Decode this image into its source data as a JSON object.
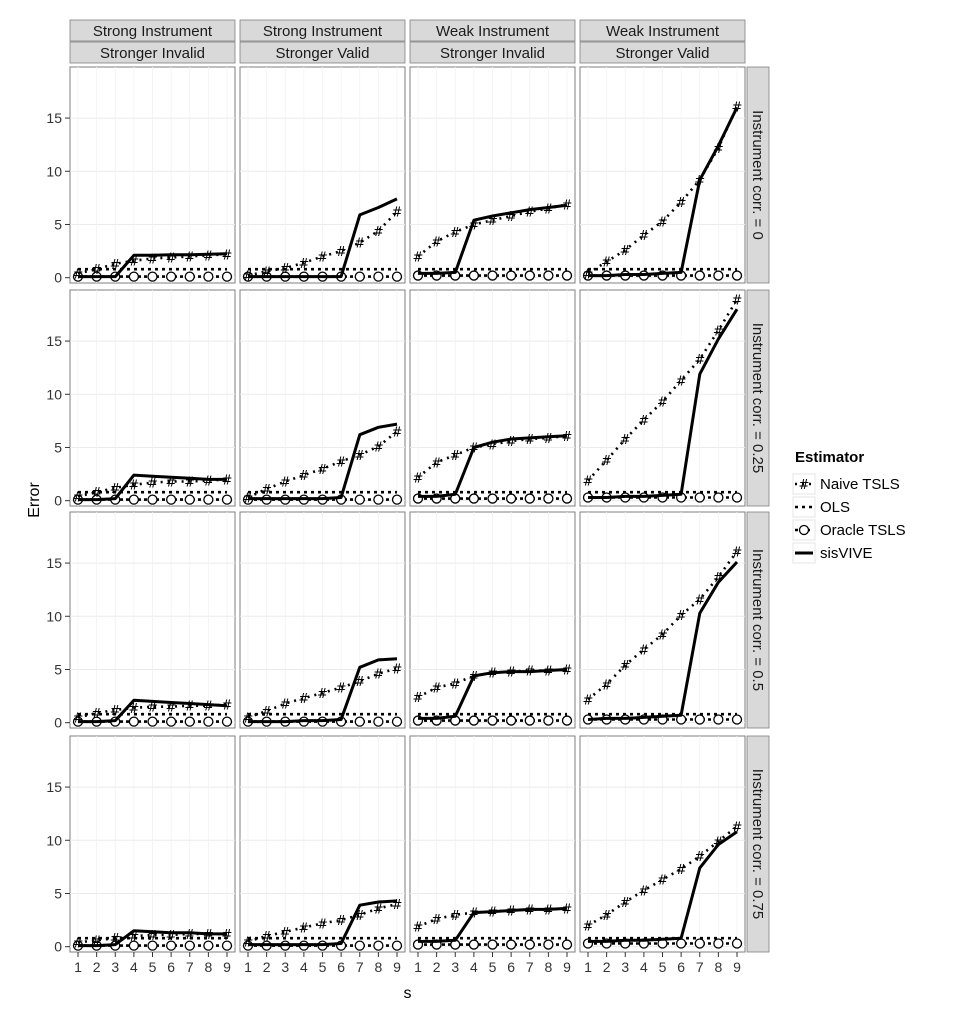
{
  "chart_data": {
    "type": "line",
    "ylabel": "Error",
    "xlabel": "s",
    "x": [
      1,
      2,
      3,
      4,
      5,
      6,
      7,
      8,
      9
    ],
    "ylim": [
      -0.5,
      19.8
    ],
    "yticks": [
      0,
      5,
      10,
      15
    ],
    "col_strips": [
      {
        "top": "Strong Instrument",
        "bottom": "Stronger Invalid"
      },
      {
        "top": "Strong Instrument",
        "bottom": "Stronger Valid"
      },
      {
        "top": "Weak Instrument",
        "bottom": "Stronger Invalid"
      },
      {
        "top": "Weak Instrument",
        "bottom": "Stronger Valid"
      }
    ],
    "row_strips": [
      "Instrument corr. = 0",
      "Instrument corr. = 0.25",
      "Instrument corr. = 0.5",
      "Instrument corr. = 0.75"
    ],
    "legend": {
      "title": "Estimator",
      "items": [
        "Naive TSLS",
        "OLS",
        "Oracle TSLS",
        "sisVIVE"
      ]
    },
    "panels": [
      [
        {
          "naive": [
            0.4,
            0.8,
            1.3,
            1.6,
            1.8,
            1.9,
            2.0,
            2.1,
            2.2
          ],
          "ols": [
            0.8,
            0.8,
            0.8,
            0.8,
            0.8,
            0.8,
            0.8,
            0.8,
            0.8
          ],
          "oracle": [
            0.1,
            0.1,
            0.1,
            0.1,
            0.1,
            0.1,
            0.1,
            0.1,
            0.1
          ],
          "sisvive": [
            0.1,
            0.1,
            0.1,
            2.1,
            2.1,
            2.15,
            2.15,
            2.2,
            2.25
          ]
        },
        {
          "naive": [
            0.2,
            0.6,
            0.9,
            1.4,
            2.0,
            2.5,
            3.3,
            4.4,
            6.2
          ],
          "ols": [
            0.8,
            0.8,
            0.8,
            0.8,
            0.8,
            0.8,
            0.8,
            0.8,
            0.8
          ],
          "oracle": [
            0.1,
            0.1,
            0.1,
            0.1,
            0.1,
            0.1,
            0.1,
            0.1,
            0.1
          ],
          "sisvive": [
            0.1,
            0.1,
            0.1,
            0.1,
            0.1,
            0.1,
            5.9,
            6.6,
            7.4
          ]
        },
        {
          "naive": [
            2.0,
            3.4,
            4.3,
            5.0,
            5.4,
            5.8,
            6.2,
            6.5,
            6.9
          ],
          "ols": [
            0.8,
            0.8,
            0.8,
            0.8,
            0.8,
            0.8,
            0.8,
            0.8,
            0.8
          ],
          "oracle": [
            0.2,
            0.2,
            0.2,
            0.2,
            0.2,
            0.2,
            0.2,
            0.2,
            0.2
          ],
          "sisvive": [
            0.4,
            0.4,
            0.5,
            5.4,
            5.8,
            6.1,
            6.4,
            6.6,
            6.8
          ]
        },
        {
          "naive": [
            0.4,
            1.5,
            2.6,
            4.0,
            5.3,
            7.1,
            9.2,
            12.2,
            16.1
          ],
          "ols": [
            0.8,
            0.8,
            0.8,
            0.8,
            0.8,
            0.8,
            0.8,
            0.8,
            0.8
          ],
          "oracle": [
            0.2,
            0.2,
            0.2,
            0.2,
            0.2,
            0.2,
            0.2,
            0.2,
            0.2
          ],
          "sisvive": [
            0.2,
            0.2,
            0.3,
            0.3,
            0.4,
            0.5,
            9.2,
            12.4,
            16.0
          ]
        }
      ],
      [
        {
          "naive": [
            0.4,
            0.8,
            1.2,
            1.5,
            1.7,
            1.8,
            1.8,
            1.9,
            2.0
          ],
          "ols": [
            0.8,
            0.8,
            0.8,
            0.8,
            0.8,
            0.8,
            0.8,
            0.8,
            0.8
          ],
          "oracle": [
            0.1,
            0.1,
            0.1,
            0.1,
            0.1,
            0.1,
            0.1,
            0.1,
            0.1
          ],
          "sisvive": [
            0.1,
            0.1,
            0.2,
            2.4,
            2.3,
            2.2,
            2.1,
            2.0,
            2.0
          ]
        },
        {
          "naive": [
            0.3,
            1.1,
            1.8,
            2.4,
            3.0,
            3.7,
            4.3,
            5.1,
            6.5
          ],
          "ols": [
            0.8,
            0.8,
            0.8,
            0.8,
            0.8,
            0.8,
            0.8,
            0.8,
            0.8
          ],
          "oracle": [
            0.1,
            0.1,
            0.1,
            0.1,
            0.1,
            0.1,
            0.1,
            0.1,
            0.1
          ],
          "sisvive": [
            0.2,
            0.2,
            0.2,
            0.2,
            0.2,
            0.3,
            6.2,
            6.9,
            7.2
          ]
        },
        {
          "naive": [
            2.2,
            3.6,
            4.3,
            5.0,
            5.3,
            5.6,
            5.8,
            5.9,
            6.1
          ],
          "ols": [
            0.8,
            0.8,
            0.8,
            0.8,
            0.8,
            0.8,
            0.8,
            0.8,
            0.8
          ],
          "oracle": [
            0.2,
            0.2,
            0.2,
            0.2,
            0.2,
            0.2,
            0.2,
            0.2,
            0.2
          ],
          "sisvive": [
            0.4,
            0.4,
            0.6,
            5.0,
            5.5,
            5.8,
            5.9,
            6.0,
            6.1
          ]
        },
        {
          "naive": [
            1.9,
            3.8,
            5.8,
            7.6,
            9.3,
            11.3,
            13.3,
            16.0,
            18.9
          ],
          "ols": [
            0.8,
            0.8,
            0.8,
            0.8,
            0.8,
            0.8,
            0.8,
            0.8,
            0.8
          ],
          "oracle": [
            0.3,
            0.3,
            0.3,
            0.3,
            0.3,
            0.3,
            0.3,
            0.3,
            0.3
          ],
          "sisvive": [
            0.3,
            0.3,
            0.4,
            0.4,
            0.5,
            0.6,
            11.9,
            15.2,
            18.0
          ]
        }
      ],
      [
        {
          "naive": [
            0.5,
            0.9,
            1.2,
            1.4,
            1.5,
            1.5,
            1.6,
            1.6,
            1.7
          ],
          "ols": [
            0.8,
            0.8,
            0.8,
            0.8,
            0.8,
            0.8,
            0.8,
            0.8,
            0.8
          ],
          "oracle": [
            0.1,
            0.1,
            0.1,
            0.1,
            0.1,
            0.1,
            0.1,
            0.1,
            0.1
          ],
          "sisvive": [
            0.1,
            0.1,
            0.2,
            2.1,
            2.0,
            1.9,
            1.8,
            1.7,
            1.6
          ]
        },
        {
          "naive": [
            0.5,
            1.1,
            1.8,
            2.3,
            2.8,
            3.3,
            3.9,
            4.6,
            5.1
          ],
          "ols": [
            0.8,
            0.8,
            0.8,
            0.8,
            0.8,
            0.8,
            0.8,
            0.8,
            0.8
          ],
          "oracle": [
            0.1,
            0.1,
            0.1,
            0.1,
            0.1,
            0.1,
            0.1,
            0.1,
            0.1
          ],
          "sisvive": [
            0.1,
            0.1,
            0.1,
            0.2,
            0.2,
            0.3,
            5.2,
            5.9,
            6.0
          ]
        },
        {
          "naive": [
            2.4,
            3.3,
            3.7,
            4.4,
            4.7,
            4.8,
            4.9,
            4.9,
            5.0
          ],
          "ols": [
            0.8,
            0.8,
            0.8,
            0.8,
            0.8,
            0.8,
            0.8,
            0.8,
            0.8
          ],
          "oracle": [
            0.2,
            0.2,
            0.2,
            0.2,
            0.2,
            0.2,
            0.2,
            0.2,
            0.2
          ],
          "sisvive": [
            0.4,
            0.4,
            0.6,
            4.4,
            4.7,
            4.8,
            4.8,
            4.9,
            5.0
          ]
        },
        {
          "naive": [
            2.2,
            3.6,
            5.4,
            6.9,
            8.3,
            10.1,
            11.6,
            13.7,
            16.1
          ],
          "ols": [
            0.8,
            0.8,
            0.8,
            0.8,
            0.8,
            0.8,
            0.8,
            0.8,
            0.8
          ],
          "oracle": [
            0.3,
            0.3,
            0.3,
            0.3,
            0.3,
            0.3,
            0.3,
            0.3,
            0.3
          ],
          "sisvive": [
            0.3,
            0.4,
            0.4,
            0.5,
            0.6,
            0.7,
            10.3,
            13.2,
            15.1
          ]
        }
      ],
      [
        {
          "naive": [
            0.4,
            0.6,
            0.8,
            1.0,
            1.1,
            1.1,
            1.2,
            1.2,
            1.2
          ],
          "ols": [
            0.8,
            0.8,
            0.8,
            0.8,
            0.8,
            0.8,
            0.8,
            0.8,
            0.8
          ],
          "oracle": [
            0.1,
            0.1,
            0.1,
            0.1,
            0.1,
            0.1,
            0.1,
            0.1,
            0.1
          ],
          "sisvive": [
            0.1,
            0.1,
            0.2,
            1.5,
            1.4,
            1.3,
            1.3,
            1.2,
            1.2
          ]
        },
        {
          "naive": [
            0.5,
            1.0,
            1.4,
            1.8,
            2.2,
            2.5,
            3.0,
            3.6,
            4.0
          ],
          "ols": [
            0.8,
            0.8,
            0.8,
            0.8,
            0.8,
            0.8,
            0.8,
            0.8,
            0.8
          ],
          "oracle": [
            0.1,
            0.1,
            0.1,
            0.1,
            0.1,
            0.1,
            0.1,
            0.1,
            0.1
          ],
          "sisvive": [
            0.2,
            0.2,
            0.2,
            0.2,
            0.2,
            0.3,
            3.9,
            4.2,
            4.3
          ]
        },
        {
          "naive": [
            1.9,
            2.6,
            3.0,
            3.2,
            3.3,
            3.4,
            3.5,
            3.5,
            3.6
          ],
          "ols": [
            0.8,
            0.8,
            0.8,
            0.8,
            0.8,
            0.8,
            0.8,
            0.8,
            0.8
          ],
          "oracle": [
            0.2,
            0.2,
            0.2,
            0.2,
            0.2,
            0.2,
            0.2,
            0.2,
            0.2
          ],
          "sisvive": [
            0.5,
            0.5,
            0.6,
            3.2,
            3.3,
            3.4,
            3.5,
            3.5,
            3.6
          ]
        },
        {
          "naive": [
            2.0,
            3.0,
            4.2,
            5.3,
            6.3,
            7.3,
            8.5,
            9.9,
            11.3
          ],
          "ols": [
            0.8,
            0.8,
            0.8,
            0.8,
            0.8,
            0.8,
            0.8,
            0.8,
            0.8
          ],
          "oracle": [
            0.3,
            0.3,
            0.3,
            0.3,
            0.3,
            0.3,
            0.3,
            0.3,
            0.3
          ],
          "sisvive": [
            0.5,
            0.5,
            0.6,
            0.6,
            0.7,
            0.8,
            7.4,
            9.6,
            10.8
          ]
        }
      ]
    ]
  }
}
